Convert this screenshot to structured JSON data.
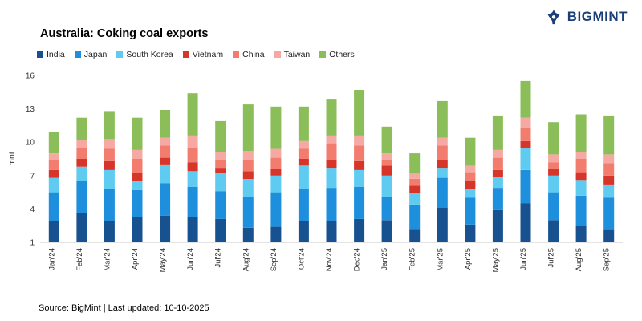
{
  "logo": {
    "text": "BIGMINT"
  },
  "title": "Australia: Coking coal exports",
  "footer": "Source: BigMint | Last updated: 10-10-2025",
  "colors": {
    "brand_navy": "#1c3f77",
    "axis_line": "#c9c9c9",
    "tick_text": "#333333"
  },
  "chart_data": {
    "type": "bar",
    "stacked": true,
    "title": "Australia: Coking coal exports",
    "xlabel": "",
    "ylabel": "mnt",
    "ylim": [
      1,
      16
    ],
    "yticks": [
      1,
      4,
      7,
      10,
      13,
      16
    ],
    "grid": false,
    "legend_position": "top",
    "categories": [
      "Jan'24",
      "Feb'24",
      "Mar'24",
      "Apr'24",
      "May'24",
      "Jun'24",
      "Jul'24",
      "Aug'24",
      "Sep'24",
      "Oct'24",
      "Nov'24",
      "Dec'24",
      "Jan'25",
      "Feb'25",
      "Mar'25",
      "Apr'25",
      "May'25",
      "Jun'25",
      "Jul'25",
      "Aug'25",
      "Sep'25"
    ],
    "series": [
      {
        "name": "India",
        "color": "#17518f",
        "values": [
          2.9,
          3.6,
          2.9,
          3.3,
          3.4,
          3.3,
          3.1,
          2.3,
          2.4,
          2.9,
          2.9,
          3.1,
          3.0,
          2.2,
          4.1,
          2.6,
          3.9,
          4.5,
          3.0,
          2.5,
          2.2
        ]
      },
      {
        "name": "Japan",
        "color": "#1e8fdd",
        "values": [
          2.6,
          2.9,
          2.9,
          2.4,
          2.9,
          2.7,
          2.5,
          2.8,
          3.1,
          2.9,
          3.0,
          2.9,
          2.1,
          2.2,
          2.7,
          2.4,
          2.0,
          3.0,
          2.5,
          2.7,
          2.8
        ]
      },
      {
        "name": "South Korea",
        "color": "#5fcbf0",
        "values": [
          1.3,
          1.3,
          1.7,
          0.8,
          1.7,
          1.4,
          1.6,
          1.6,
          1.5,
          2.1,
          1.8,
          1.5,
          1.9,
          1.0,
          0.9,
          0.8,
          1.0,
          2.0,
          1.5,
          1.4,
          1.2
        ]
      },
      {
        "name": "Vietnam",
        "color": "#d7342a",
        "values": [
          0.7,
          0.7,
          0.8,
          0.7,
          0.6,
          0.8,
          0.5,
          0.7,
          0.6,
          0.6,
          0.7,
          0.8,
          0.9,
          0.7,
          0.7,
          0.7,
          0.6,
          0.6,
          0.6,
          0.7,
          0.8
        ]
      },
      {
        "name": "China",
        "color": "#f27d6f",
        "values": [
          0.9,
          1.0,
          1.1,
          1.3,
          1.1,
          1.3,
          0.7,
          1.0,
          1.0,
          0.9,
          1.5,
          1.4,
          0.5,
          0.6,
          1.3,
          0.8,
          1.1,
          1.2,
          0.6,
          1.2,
          1.1
        ]
      },
      {
        "name": "Taiwan",
        "color": "#f5a9a2",
        "values": [
          0.6,
          0.7,
          0.9,
          0.8,
          0.7,
          1.1,
          0.7,
          0.8,
          0.8,
          0.7,
          0.7,
          0.9,
          0.6,
          0.5,
          0.7,
          0.6,
          0.7,
          0.9,
          0.7,
          0.6,
          0.8
        ]
      },
      {
        "name": "Others",
        "color": "#8bbd59",
        "values": [
          1.9,
          2.0,
          2.5,
          2.9,
          2.5,
          3.8,
          2.8,
          4.2,
          3.8,
          3.1,
          3.3,
          4.1,
          2.4,
          1.8,
          3.3,
          2.5,
          3.1,
          3.3,
          2.9,
          3.4,
          3.5
        ]
      }
    ]
  }
}
